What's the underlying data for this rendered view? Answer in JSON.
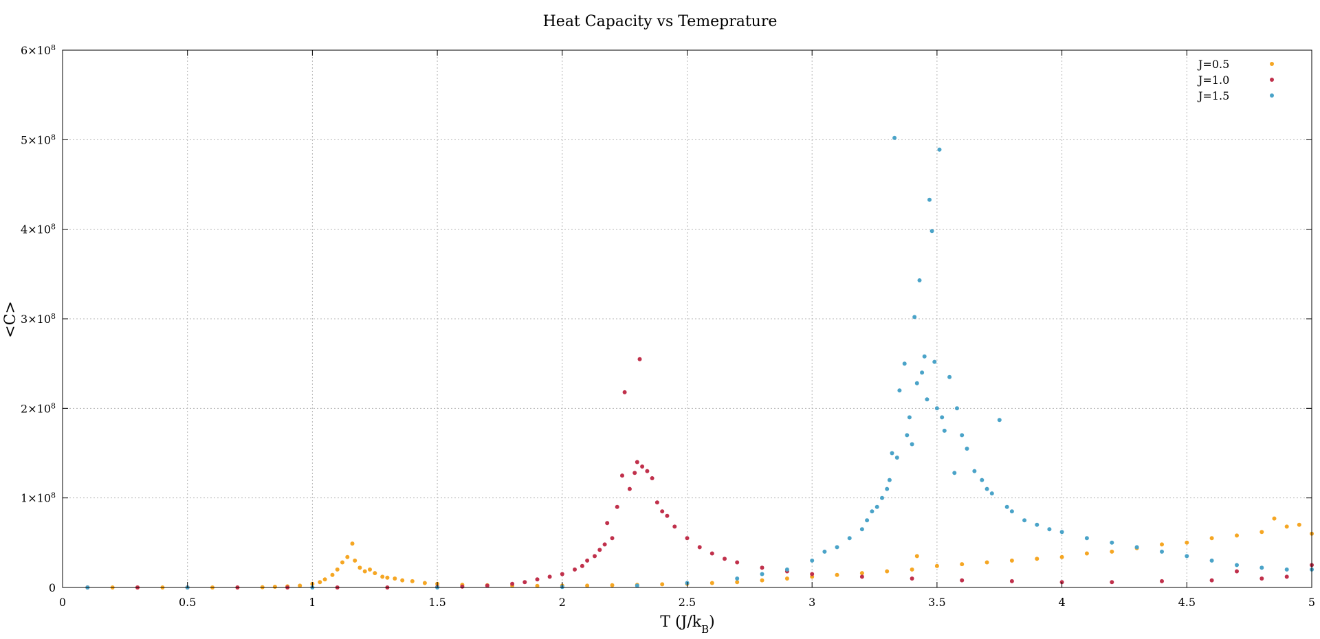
{
  "chart_data": {
    "type": "scatter",
    "title": "Heat Capacity vs Temeprature",
    "xlabel_main": "T (J/k",
    "xlabel_sub": "B",
    "xlabel_end": ")",
    "ylabel": "<C>",
    "xlim": [
      0,
      5
    ],
    "ylim": [
      0,
      600000000
    ],
    "grid": true,
    "legend_position": "top-right",
    "x_ticks": [
      {
        "value": 0,
        "label": "0"
      },
      {
        "value": 0.5,
        "label": "0.5"
      },
      {
        "value": 1,
        "label": "1"
      },
      {
        "value": 1.5,
        "label": "1.5"
      },
      {
        "value": 2,
        "label": "2"
      },
      {
        "value": 2.5,
        "label": "2.5"
      },
      {
        "value": 3,
        "label": "3"
      },
      {
        "value": 3.5,
        "label": "3.5"
      },
      {
        "value": 4,
        "label": "4"
      },
      {
        "value": 4.5,
        "label": "4.5"
      },
      {
        "value": 5,
        "label": "5"
      }
    ],
    "y_ticks": [
      {
        "value": 0,
        "base": "0",
        "exp": ""
      },
      {
        "value": 100000000,
        "base": "1×10",
        "exp": "8"
      },
      {
        "value": 200000000,
        "base": "2×10",
        "exp": "8"
      },
      {
        "value": 300000000,
        "base": "3×10",
        "exp": "8"
      },
      {
        "value": 400000000,
        "base": "4×10",
        "exp": "8"
      },
      {
        "value": 500000000,
        "base": "5×10",
        "exp": "8"
      },
      {
        "value": 600000000,
        "base": "6×10",
        "exp": "8"
      }
    ],
    "series": [
      {
        "name": "J=0.5",
        "color": "#f5a623",
        "points": [
          [
            0.1,
            0
          ],
          [
            0.2,
            0
          ],
          [
            0.3,
            0
          ],
          [
            0.4,
            0
          ],
          [
            0.5,
            0
          ],
          [
            0.6,
            0
          ],
          [
            0.7,
            0
          ],
          [
            0.8,
            300000
          ],
          [
            0.85,
            800000
          ],
          [
            0.9,
            1200000
          ],
          [
            0.95,
            2000000
          ],
          [
            1.0,
            4000000
          ],
          [
            1.03,
            6000000
          ],
          [
            1.05,
            9000000
          ],
          [
            1.08,
            14000000
          ],
          [
            1.1,
            20000000
          ],
          [
            1.12,
            28000000
          ],
          [
            1.14,
            34000000
          ],
          [
            1.16,
            49000000
          ],
          [
            1.17,
            30000000
          ],
          [
            1.19,
            22000000
          ],
          [
            1.21,
            18000000
          ],
          [
            1.23,
            20000000
          ],
          [
            1.25,
            16000000
          ],
          [
            1.28,
            12000000
          ],
          [
            1.3,
            11000000
          ],
          [
            1.33,
            10000000
          ],
          [
            1.36,
            8000000
          ],
          [
            1.4,
            7000000
          ],
          [
            1.45,
            5000000
          ],
          [
            1.5,
            4000000
          ],
          [
            1.6,
            3000000
          ],
          [
            1.7,
            2500000
          ],
          [
            1.8,
            2000000
          ],
          [
            1.9,
            1800000
          ],
          [
            2.0,
            2000000
          ],
          [
            2.1,
            2000000
          ],
          [
            2.2,
            2500000
          ],
          [
            2.3,
            3000000
          ],
          [
            2.4,
            3500000
          ],
          [
            2.5,
            4000000
          ],
          [
            2.6,
            5000000
          ],
          [
            2.7,
            6000000
          ],
          [
            2.8,
            8000000
          ],
          [
            2.9,
            10000000
          ],
          [
            3.0,
            12000000
          ],
          [
            3.1,
            14000000
          ],
          [
            3.2,
            16000000
          ],
          [
            3.3,
            18000000
          ],
          [
            3.4,
            20000000
          ],
          [
            3.42,
            35000000
          ],
          [
            3.5,
            24000000
          ],
          [
            3.6,
            26000000
          ],
          [
            3.7,
            28000000
          ],
          [
            3.8,
            30000000
          ],
          [
            3.9,
            32000000
          ],
          [
            4.0,
            34000000
          ],
          [
            4.1,
            38000000
          ],
          [
            4.2,
            40000000
          ],
          [
            4.3,
            44000000
          ],
          [
            4.4,
            48000000
          ],
          [
            4.5,
            50000000
          ],
          [
            4.6,
            55000000
          ],
          [
            4.7,
            58000000
          ],
          [
            4.8,
            62000000
          ],
          [
            4.85,
            77000000
          ],
          [
            4.9,
            68000000
          ],
          [
            4.95,
            70000000
          ],
          [
            5.0,
            60000000
          ]
        ]
      },
      {
        "name": "J=1.0",
        "color": "#c0304b",
        "points": [
          [
            0.1,
            0
          ],
          [
            0.3,
            0
          ],
          [
            0.5,
            0
          ],
          [
            0.7,
            0
          ],
          [
            0.9,
            0
          ],
          [
            1.1,
            0
          ],
          [
            1.3,
            0
          ],
          [
            1.5,
            500000
          ],
          [
            1.6,
            1000000
          ],
          [
            1.7,
            2000000
          ],
          [
            1.8,
            4000000
          ],
          [
            1.85,
            6000000
          ],
          [
            1.9,
            9000000
          ],
          [
            1.95,
            12000000
          ],
          [
            2.0,
            15000000
          ],
          [
            2.05,
            20000000
          ],
          [
            2.08,
            24000000
          ],
          [
            2.1,
            30000000
          ],
          [
            2.13,
            35000000
          ],
          [
            2.15,
            42000000
          ],
          [
            2.17,
            48000000
          ],
          [
            2.18,
            72000000
          ],
          [
            2.2,
            55000000
          ],
          [
            2.22,
            90000000
          ],
          [
            2.24,
            125000000
          ],
          [
            2.25,
            218000000
          ],
          [
            2.27,
            110000000
          ],
          [
            2.29,
            128000000
          ],
          [
            2.3,
            140000000
          ],
          [
            2.31,
            255000000
          ],
          [
            2.32,
            135000000
          ],
          [
            2.34,
            130000000
          ],
          [
            2.36,
            122000000
          ],
          [
            2.38,
            95000000
          ],
          [
            2.4,
            85000000
          ],
          [
            2.42,
            80000000
          ],
          [
            2.45,
            68000000
          ],
          [
            2.5,
            55000000
          ],
          [
            2.55,
            45000000
          ],
          [
            2.6,
            38000000
          ],
          [
            2.65,
            32000000
          ],
          [
            2.7,
            28000000
          ],
          [
            2.8,
            22000000
          ],
          [
            2.9,
            18000000
          ],
          [
            3.0,
            15000000
          ],
          [
            3.2,
            12000000
          ],
          [
            3.4,
            10000000
          ],
          [
            3.6,
            8000000
          ],
          [
            3.8,
            7000000
          ],
          [
            4.0,
            6000000
          ],
          [
            4.2,
            6000000
          ],
          [
            4.4,
            7000000
          ],
          [
            4.6,
            8000000
          ],
          [
            4.7,
            18000000
          ],
          [
            4.8,
            10000000
          ],
          [
            4.9,
            12000000
          ],
          [
            5.0,
            25000000
          ]
        ]
      },
      {
        "name": "J=1.5",
        "color": "#4aa3c8",
        "points": [
          [
            0.1,
            0
          ],
          [
            0.5,
            0
          ],
          [
            1.0,
            0
          ],
          [
            1.5,
            0
          ],
          [
            2.0,
            500000
          ],
          [
            2.3,
            2000000
          ],
          [
            2.5,
            5000000
          ],
          [
            2.7,
            10000000
          ],
          [
            2.8,
            15000000
          ],
          [
            2.9,
            20000000
          ],
          [
            3.0,
            30000000
          ],
          [
            3.05,
            40000000
          ],
          [
            3.1,
            45000000
          ],
          [
            3.15,
            55000000
          ],
          [
            3.2,
            65000000
          ],
          [
            3.22,
            75000000
          ],
          [
            3.24,
            85000000
          ],
          [
            3.26,
            90000000
          ],
          [
            3.28,
            100000000
          ],
          [
            3.3,
            110000000
          ],
          [
            3.31,
            120000000
          ],
          [
            3.32,
            150000000
          ],
          [
            3.33,
            502000000
          ],
          [
            3.34,
            145000000
          ],
          [
            3.35,
            220000000
          ],
          [
            3.37,
            250000000
          ],
          [
            3.38,
            170000000
          ],
          [
            3.39,
            190000000
          ],
          [
            3.4,
            160000000
          ],
          [
            3.41,
            302000000
          ],
          [
            3.42,
            228000000
          ],
          [
            3.43,
            343000000
          ],
          [
            3.44,
            240000000
          ],
          [
            3.45,
            258000000
          ],
          [
            3.46,
            210000000
          ],
          [
            3.47,
            433000000
          ],
          [
            3.48,
            398000000
          ],
          [
            3.49,
            252000000
          ],
          [
            3.5,
            200000000
          ],
          [
            3.51,
            489000000
          ],
          [
            3.52,
            190000000
          ],
          [
            3.53,
            175000000
          ],
          [
            3.55,
            235000000
          ],
          [
            3.57,
            128000000
          ],
          [
            3.58,
            200000000
          ],
          [
            3.6,
            170000000
          ],
          [
            3.62,
            155000000
          ],
          [
            3.65,
            130000000
          ],
          [
            3.68,
            120000000
          ],
          [
            3.7,
            110000000
          ],
          [
            3.72,
            105000000
          ],
          [
            3.75,
            187000000
          ],
          [
            3.78,
            90000000
          ],
          [
            3.8,
            85000000
          ],
          [
            3.85,
            75000000
          ],
          [
            3.9,
            70000000
          ],
          [
            3.95,
            65000000
          ],
          [
            4.0,
            62000000
          ],
          [
            4.1,
            55000000
          ],
          [
            4.2,
            50000000
          ],
          [
            4.3,
            45000000
          ],
          [
            4.4,
            40000000
          ],
          [
            4.5,
            35000000
          ],
          [
            4.6,
            30000000
          ],
          [
            4.7,
            25000000
          ],
          [
            4.8,
            22000000
          ],
          [
            4.9,
            20000000
          ],
          [
            5.0,
            20000000
          ]
        ]
      }
    ]
  }
}
